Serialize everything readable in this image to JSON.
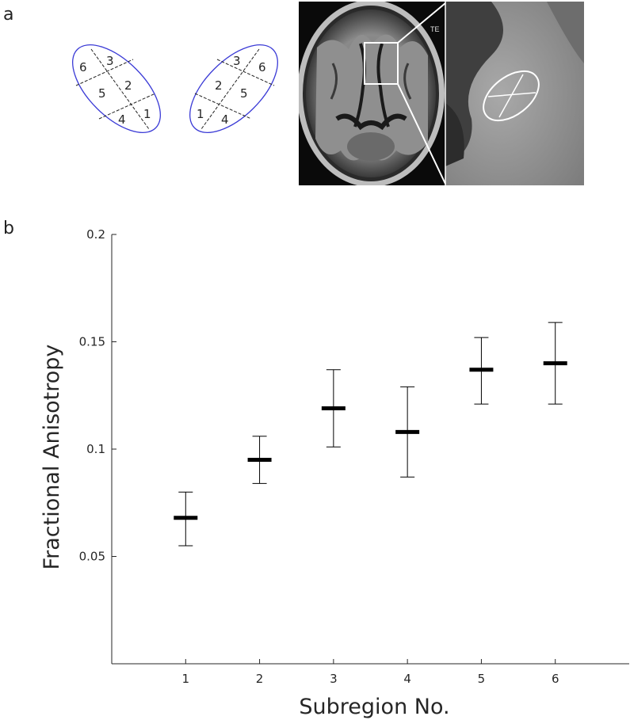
{
  "panel_labels": {
    "a": "a",
    "b": "b"
  },
  "diagram": {
    "left_ellipse_numbers": [
      "6",
      "3",
      "5",
      "2",
      "4",
      "1"
    ],
    "right_ellipse_numbers": [
      "3",
      "6",
      "2",
      "5",
      "1",
      "4"
    ],
    "ellipse_color": "#3b3bd6"
  },
  "mri": {
    "overlay_text": "TE"
  },
  "chart_data": {
    "type": "errorbar",
    "title": "",
    "xlabel": "Subregion No.",
    "ylabel": "Fractional Anisotropy",
    "categories": [
      "1",
      "2",
      "3",
      "4",
      "5",
      "6"
    ],
    "x": [
      1,
      2,
      3,
      4,
      5,
      6
    ],
    "values": [
      0.068,
      0.095,
      0.119,
      0.108,
      0.137,
      0.14
    ],
    "error_low": [
      0.055,
      0.084,
      0.101,
      0.087,
      0.121,
      0.121
    ],
    "error_high": [
      0.08,
      0.106,
      0.137,
      0.129,
      0.152,
      0.159
    ],
    "xlim": [
      0,
      7
    ],
    "ylim": [
      0.0,
      0.2
    ],
    "yticks": [
      0.05,
      0.1,
      0.15,
      0.2
    ],
    "ytick_labels": [
      "0.05",
      "0.1",
      "0.15",
      "0.2"
    ],
    "grid": false,
    "marker_color": "#000000"
  }
}
